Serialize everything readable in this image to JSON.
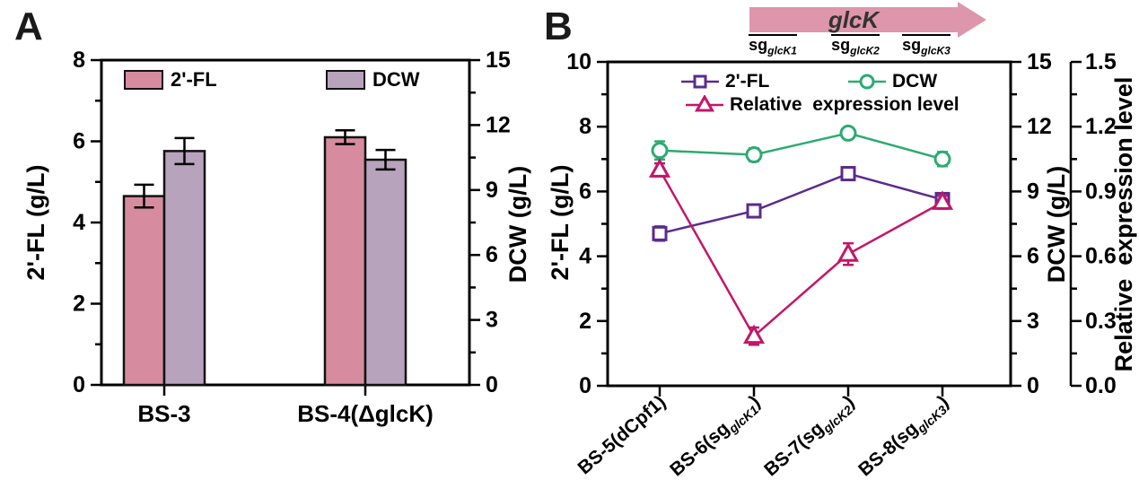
{
  "colors": {
    "axis": "#000000",
    "fl_bar": "#d68c9e",
    "dcw_bar": "#b8a3bc",
    "fl_line": "#5c2b8c",
    "dcw_line": "#2cab72",
    "expr_line": "#c41569",
    "gene_arrow": "#dd96ab",
    "gene_label_color": "#333333"
  },
  "chart_data": [
    {
      "panel_label": "A",
      "type": "bar",
      "categories": [
        "BS-3",
        "BS-4(ΔglcK)"
      ],
      "axes": {
        "left": {
          "label": "2'-FL (g/L)",
          "min": 0,
          "max": 8,
          "major_ticks": [
            0,
            2,
            4,
            6,
            8
          ],
          "tick_labels": [
            "0",
            "2",
            "4",
            "6",
            "8"
          ],
          "minor_step": 1
        },
        "right": {
          "label": "DCW (g/L)",
          "min": 0,
          "max": 15,
          "major_ticks": [
            0,
            3,
            6,
            9,
            12,
            15
          ],
          "tick_labels": [
            "0",
            "3",
            "6",
            "9",
            "12",
            "15"
          ],
          "minor_step": 1.5
        }
      },
      "series": [
        {
          "name": "2'-FL",
          "axis": "left",
          "color": "#d68c9e",
          "values": [
            4.65,
            6.1
          ],
          "errors": [
            0.28,
            0.17
          ]
        },
        {
          "name": "DCW",
          "axis": "right",
          "color": "#b8a3bc",
          "values": [
            10.8,
            10.4
          ],
          "errors": [
            0.6,
            0.45
          ]
        }
      ]
    },
    {
      "panel_label": "B",
      "type": "line",
      "categories": [
        "BS-5(dCpf1)",
        "BS-6(sg_glcK1)",
        "BS-7(sg_glcK2)",
        "BS-8(sg_glcK3)"
      ],
      "categories_rich": [
        {
          "pre": "BS-5(dCpf1)",
          "sub": "",
          "post": ""
        },
        {
          "pre": "BS-6(sg",
          "sub": "glcK1",
          "post": ")"
        },
        {
          "pre": "BS-7(sg",
          "sub": "glcK2",
          "post": ")"
        },
        {
          "pre": "BS-8(sg",
          "sub": "glcK3",
          "post": ")"
        }
      ],
      "axes": {
        "left": {
          "label": "2'-FL (g/L)",
          "min": 0,
          "max": 10,
          "major_ticks": [
            0,
            2,
            4,
            6,
            8,
            10
          ],
          "tick_labels": [
            "0",
            "2",
            "4",
            "6",
            "8",
            "10"
          ],
          "minor_step": 1
        },
        "right": {
          "label": "DCW (g/L)",
          "min": 0,
          "max": 15,
          "major_ticks": [
            0,
            3,
            6,
            9,
            12,
            15
          ],
          "tick_labels": [
            "0",
            "3",
            "6",
            "9",
            "12",
            "15"
          ],
          "minor_step": 1.5
        },
        "far_right": {
          "label": "Relative  expression level",
          "min": 0,
          "max": 1.5,
          "major_ticks": [
            0,
            0.3,
            0.6,
            0.9,
            1.2,
            1.5
          ],
          "tick_labels": [
            "0.0",
            "0.3",
            "0.6",
            "0.9",
            "1.2",
            "1.5"
          ],
          "minor_step": 0.15
        }
      },
      "series": [
        {
          "name": "2'-FL",
          "axis": "left",
          "marker": "square",
          "color": "#5c2b8c",
          "values": [
            4.7,
            5.4,
            6.55,
            5.75
          ],
          "errors": [
            0.22,
            0.12,
            0.2,
            0.14
          ]
        },
        {
          "name": "DCW",
          "axis": "right",
          "marker": "circle",
          "color": "#2cab72",
          "values": [
            10.9,
            10.7,
            11.7,
            10.5
          ],
          "errors": [
            0.42,
            0.3,
            0.2,
            0.33
          ]
        },
        {
          "name": "Relative  expression level",
          "axis": "far_right",
          "marker": "triangle",
          "color": "#c41569",
          "values": [
            1.0,
            0.23,
            0.61,
            0.85
          ],
          "errors": [
            0.03,
            0.04,
            0.05,
            0.03
          ]
        }
      ],
      "gene_annotation": {
        "arrow_label": "glcK",
        "sg_labels": [
          {
            "base": "sg",
            "sub": "glcK1"
          },
          {
            "base": "sg",
            "sub": "glcK2"
          },
          {
            "base": "sg",
            "sub": "glcK3"
          }
        ]
      }
    }
  ]
}
